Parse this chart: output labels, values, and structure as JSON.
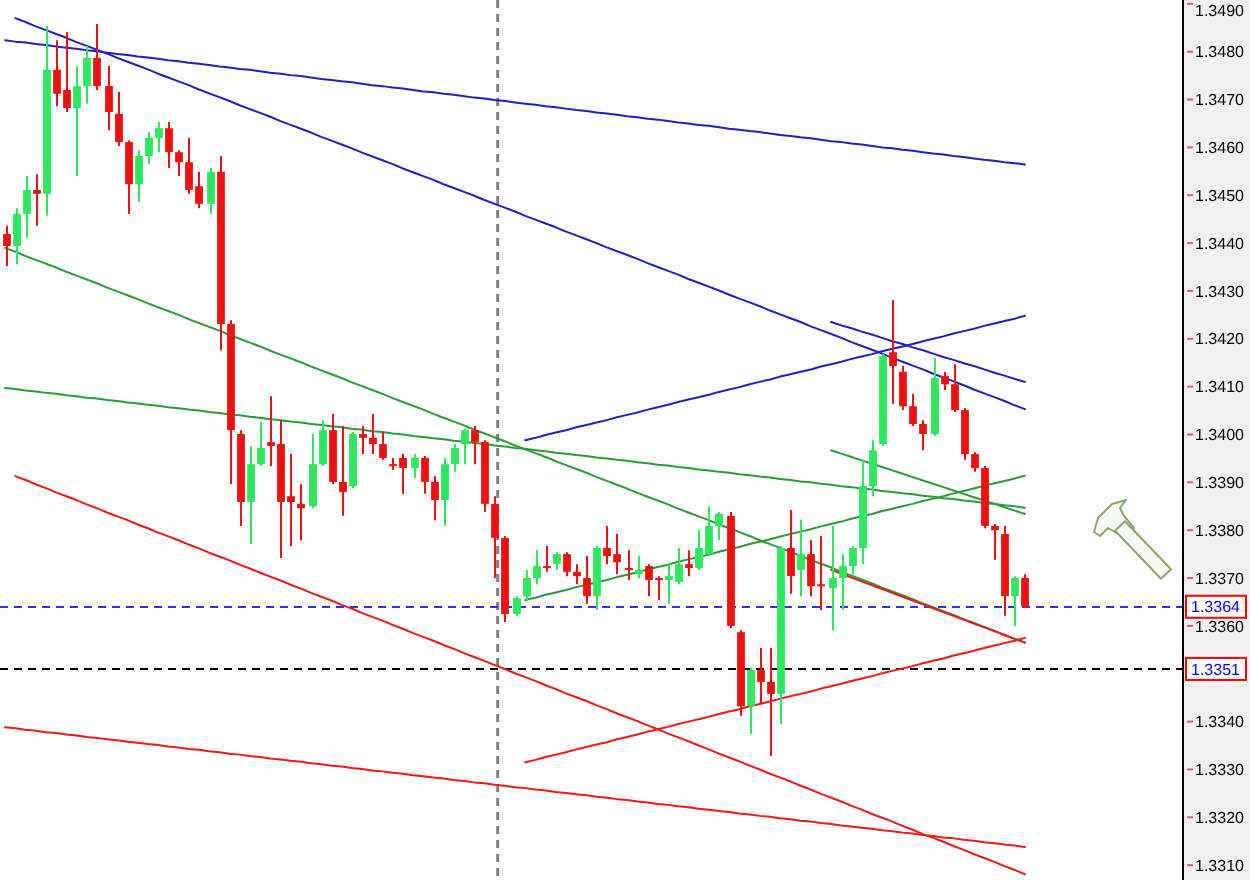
{
  "chart_data": {
    "type": "candlestick",
    "categories": [
      null,
      null,
      null,
      null,
      null,
      null,
      null,
      null,
      null,
      null,
      null,
      null,
      null,
      null,
      null,
      null,
      null,
      null,
      null,
      null,
      null,
      null,
      null,
      null,
      null,
      null,
      null,
      null,
      null,
      null,
      null,
      null,
      null,
      null,
      null,
      null,
      null,
      null,
      null,
      null,
      null,
      null,
      null,
      null,
      null,
      null,
      null,
      null,
      null,
      null,
      null,
      null,
      null,
      null,
      null,
      null,
      null,
      null,
      null,
      null,
      null,
      null,
      null,
      null,
      null,
      null,
      null,
      null,
      null,
      null,
      null,
      null,
      null,
      null,
      null,
      null,
      null,
      null,
      null,
      null,
      null,
      null,
      null,
      null,
      null,
      null,
      null,
      null,
      null,
      null,
      null,
      null,
      null,
      null,
      null,
      null,
      null,
      null,
      null,
      null,
      null,
      null,
      null,
      null,
      null,
      null,
      null,
      null,
      null,
      null,
      null,
      null,
      null,
      null,
      null,
      null
    ],
    "ohlc": [
      [
        1.34419,
        1.34436,
        1.34352,
        1.34394
      ],
      [
        1.34394,
        1.34473,
        1.34356,
        1.34461
      ],
      [
        1.34461,
        1.3454,
        1.34411,
        1.34511
      ],
      [
        1.34511,
        1.34544,
        1.34436,
        1.34503
      ],
      [
        1.34503,
        1.34854,
        1.34457,
        1.34762
      ],
      [
        1.34762,
        1.34824,
        1.34686,
        1.34712
      ],
      [
        1.3472,
        1.34841,
        1.34674,
        1.34682
      ],
      [
        1.34682,
        1.3477,
        1.3454,
        1.34728
      ],
      [
        1.34728,
        1.34812,
        1.34691,
        1.34787
      ],
      [
        1.34787,
        1.34858,
        1.3472,
        1.34728
      ],
      [
        1.34728,
        1.3477,
        1.34636,
        1.34674
      ],
      [
        1.3467,
        1.34716,
        1.34603,
        1.34611
      ],
      [
        1.34611,
        1.34615,
        1.34461,
        1.34523
      ],
      [
        1.34523,
        1.34594,
        1.34486,
        1.34582
      ],
      [
        1.34582,
        1.34632,
        1.34565,
        1.3462
      ],
      [
        1.3462,
        1.34653,
        1.3459,
        1.3464
      ],
      [
        1.3464,
        1.34653,
        1.34557,
        1.3459
      ],
      [
        1.3459,
        1.34594,
        1.3454,
        1.34569
      ],
      [
        1.34569,
        1.3462,
        1.34503,
        1.34511
      ],
      [
        1.34519,
        1.34549,
        1.34473,
        1.34482
      ],
      [
        1.34482,
        1.34557,
        1.34461,
        1.34549
      ],
      [
        1.34549,
        1.34582,
        1.34176,
        1.34231
      ],
      [
        1.34231,
        1.34239,
        1.33896,
        1.34009
      ],
      [
        1.34001,
        1.34009,
        1.33809,
        1.33859
      ],
      [
        1.33859,
        1.33976,
        1.33771,
        1.33938
      ],
      [
        1.33938,
        1.34026,
        1.33934,
        1.33972
      ],
      [
        1.33984,
        1.3408,
        1.33934,
        1.33976
      ],
      [
        1.3398,
        1.3403,
        1.33742,
        1.33859
      ],
      [
        1.33871,
        1.33959,
        1.33767,
        1.33859
      ],
      [
        1.33855,
        1.33896,
        1.33779,
        1.33846
      ],
      [
        1.3385,
        1.34001,
        1.33846,
        1.33938
      ],
      [
        1.33938,
        1.3403,
        1.33934,
        1.34009
      ],
      [
        1.34009,
        1.34043,
        1.33896,
        1.33901
      ],
      [
        1.33901,
        1.34018,
        1.3383,
        1.3388
      ],
      [
        1.33892,
        1.34005,
        1.33888,
        1.34001
      ],
      [
        1.34001,
        1.34018,
        1.33959,
        1.33993
      ],
      [
        1.33993,
        1.34043,
        1.33959,
        1.3398
      ],
      [
        1.3398,
        1.34005,
        1.33947,
        1.33951
      ],
      [
        1.33938,
        1.33951,
        1.33926,
        1.33934
      ],
      [
        1.33951,
        1.33959,
        1.33876,
        1.3393
      ],
      [
        1.3393,
        1.33959,
        1.33909,
        1.33951
      ],
      [
        1.33951,
        1.33955,
        1.33876,
        1.33901
      ],
      [
        1.33901,
        1.33913,
        1.33821,
        1.33863
      ],
      [
        1.33863,
        1.33951,
        1.33809,
        1.33938
      ],
      [
        1.33938,
        1.3398,
        1.33922,
        1.33972
      ],
      [
        1.3398,
        1.34013,
        1.33938,
        1.34009
      ],
      [
        1.34009,
        1.34018,
        1.33938,
        1.33984
      ],
      [
        1.33984,
        1.33988,
        1.33838,
        1.33855
      ],
      [
        1.33855,
        1.33871,
        1.337,
        1.33784
      ],
      [
        1.33784,
        1.33788,
        1.33608,
        1.33625
      ],
      [
        1.33625,
        1.33662,
        1.33621,
        1.33658
      ],
      [
        1.33662,
        1.33717,
        1.33654,
        1.337
      ],
      [
        1.337,
        1.33758,
        1.33687,
        1.33725
      ],
      [
        1.33725,
        1.33767,
        1.33713,
        1.33721
      ],
      [
        1.33729,
        1.33754,
        1.33717,
        1.3375
      ],
      [
        1.3375,
        1.33754,
        1.33704,
        1.33713
      ],
      [
        1.33713,
        1.33729,
        1.33687,
        1.33704
      ],
      [
        1.337,
        1.33746,
        1.33646,
        1.33662
      ],
      [
        1.33662,
        1.33767,
        1.33633,
        1.33763
      ],
      [
        1.33763,
        1.33809,
        1.33729,
        1.33746
      ],
      [
        1.3375,
        1.33792,
        1.33708,
        1.33733
      ],
      [
        1.33721,
        1.33758,
        1.33696,
        1.33717
      ],
      [
        1.33708,
        1.33746,
        1.337,
        1.33717
      ],
      [
        1.33725,
        1.33729,
        1.33662,
        1.33696
      ],
      [
        1.337,
        1.33704,
        1.33654,
        1.33696
      ],
      [
        1.33696,
        1.33729,
        1.33646,
        1.33704
      ],
      [
        1.33692,
        1.33763,
        1.33687,
        1.33729
      ],
      [
        1.33729,
        1.33758,
        1.33704,
        1.33721
      ],
      [
        1.33721,
        1.338,
        1.33717,
        1.33763
      ],
      [
        1.3375,
        1.3385,
        1.33746,
        1.33809
      ],
      [
        1.33809,
        1.33838,
        1.33779,
        1.33834
      ],
      [
        1.3383,
        1.33838,
        1.33595,
        1.336
      ],
      [
        1.33587,
        1.33591,
        1.33412,
        1.33432
      ],
      [
        1.33432,
        1.33512,
        1.33374,
        1.33508
      ],
      [
        1.33508,
        1.33554,
        1.33437,
        1.33483
      ],
      [
        1.33483,
        1.33554,
        1.33328,
        1.33458
      ],
      [
        1.33458,
        1.33767,
        1.33395,
        1.33763
      ],
      [
        1.33763,
        1.33842,
        1.33667,
        1.33704
      ],
      [
        1.33717,
        1.33822,
        1.33662,
        1.3375
      ],
      [
        1.3375,
        1.33779,
        1.33662,
        1.33683
      ],
      [
        1.33687,
        1.33788,
        1.33633,
        1.33683
      ],
      [
        1.33679,
        1.33809,
        1.33591,
        1.337
      ],
      [
        1.337,
        1.3375,
        1.33633,
        1.33725
      ],
      [
        1.33725,
        1.33767,
        1.33708,
        1.33763
      ],
      [
        1.33763,
        1.33947,
        1.33729,
        1.33892
      ],
      [
        1.33892,
        1.33988,
        1.33871,
        1.33967
      ],
      [
        1.3398,
        1.34168,
        1.33976,
        1.34164
      ],
      [
        1.34172,
        1.34281,
        1.34064,
        1.34143
      ],
      [
        1.34131,
        1.34143,
        1.34051,
        1.34059
      ],
      [
        1.34059,
        1.34085,
        1.34018,
        1.34022
      ],
      [
        1.34022,
        1.3403,
        1.33967,
        1.34001
      ],
      [
        1.34001,
        1.3416,
        1.33997,
        1.34118
      ],
      [
        1.34122,
        1.34131,
        1.34093,
        1.34105
      ],
      [
        1.34105,
        1.34147,
        1.34047,
        1.34051
      ],
      [
        1.34051,
        1.34055,
        1.33947,
        1.33959
      ],
      [
        1.33959,
        1.33963,
        1.33922,
        1.3393
      ],
      [
        1.3393,
        1.33934,
        1.33804,
        1.33809
      ],
      [
        1.33809,
        1.33813,
        1.33738,
        1.338
      ],
      [
        1.33792,
        1.33809,
        1.33621,
        1.33662
      ],
      [
        1.33662,
        1.33704,
        1.336,
        1.337
      ],
      [
        1.337,
        1.33708,
        1.33637,
        1.33641
      ],
      null,
      null,
      null,
      null,
      null,
      null,
      null,
      null,
      null,
      null,
      null,
      null,
      null,
      null,
      null
    ],
    "colors": [
      "#ee1111",
      "#2ee860",
      "#2ee860",
      "#ee1111",
      "#2ee860",
      "#ee1111",
      "#ee1111",
      "#2ee860",
      "#2ee860",
      "#ee1111",
      "#ee1111",
      "#ee1111",
      "#ee1111",
      "#2ee860",
      "#2ee860",
      "#2ee860",
      "#ee1111",
      "#ee1111",
      "#ee1111",
      "#ee1111",
      "#2ee860",
      "#ee1111",
      "#ee1111",
      "#ee1111",
      "#2ee860",
      "#2ee860",
      "#ee1111",
      "#ee1111",
      "#ee1111",
      "#ee1111",
      "#2ee860",
      "#2ee860",
      "#ee1111",
      "#ee1111",
      "#2ee860",
      "#ee1111",
      "#ee1111",
      "#ee1111",
      "#ee1111",
      "#ee1111",
      "#2ee860",
      "#ee1111",
      "#ee1111",
      "#2ee860",
      "#2ee860",
      "#2ee860",
      "#ee1111",
      "#ee1111",
      "#ee1111",
      "#ee1111",
      "#2ee860",
      "#2ee860",
      "#2ee860",
      "#ee1111",
      "#2ee860",
      "#ee1111",
      "#ee1111",
      "#ee1111",
      "#2ee860",
      "#ee1111",
      "#ee1111",
      "#ee1111",
      "#2ee860",
      "#ee1111",
      "#ee1111",
      "#2ee860",
      "#2ee860",
      "#ee1111",
      "#2ee860",
      "#2ee860",
      "#2ee860",
      "#ee1111",
      "#ee1111",
      "#2ee860",
      "#ee1111",
      "#ee1111",
      "#2ee860",
      "#ee1111",
      "#2ee860",
      "#ee1111",
      "#ee1111",
      "#2ee860",
      "#2ee860",
      "#2ee860",
      "#2ee860",
      "#2ee860",
      "#2ee860",
      "#ee1111",
      "#ee1111",
      "#ee1111",
      "#ee1111",
      "#2ee860",
      "#ee1111",
      "#ee1111",
      "#ee1111",
      "#ee1111",
      "#ee1111",
      "#ee1111",
      "#ee1111",
      "#2ee860",
      "#ee1111",
      null,
      null,
      null,
      null,
      null,
      null,
      null,
      null,
      null,
      null,
      null,
      null,
      null,
      null,
      null
    ],
    "series": [
      {
        "type": "line",
        "color": "#2020c8",
        "values": [
          1.34824,
          1.34821,
          1.34819,
          1.34816,
          1.34814,
          1.34811,
          1.34808,
          1.34806,
          1.34803,
          1.34801,
          1.34798,
          1.34795,
          1.34793,
          1.3479,
          1.34788,
          1.34785,
          1.34782,
          1.3478,
          1.34777,
          1.34775,
          1.34772,
          1.34769,
          1.34767,
          1.34764,
          1.34762,
          1.34759,
          1.34756,
          1.34754,
          1.34751,
          1.34749,
          1.34746,
          1.34743,
          1.34741,
          1.34738,
          1.34736,
          1.34733,
          1.3473,
          1.34728,
          1.34725,
          1.34723,
          1.3472,
          1.34717,
          1.34715,
          1.34712,
          1.3471,
          1.34707,
          1.34704,
          1.34702,
          1.34699,
          1.34697,
          1.34694,
          1.34691,
          1.34689,
          1.34686,
          1.34684,
          1.34681,
          1.34678,
          1.34676,
          1.34673,
          1.34671,
          1.34668,
          1.34665,
          1.34663,
          1.3466,
          1.34658,
          1.34655,
          1.34652,
          1.3465,
          1.34647,
          1.34645,
          1.34642,
          1.34639,
          1.34637,
          1.34634,
          1.34632,
          1.34629,
          1.34626,
          1.34624,
          1.34621,
          1.34619,
          1.34616,
          1.34613,
          1.34611,
          1.34608,
          1.34606,
          1.34603,
          1.346,
          1.34598,
          1.34595,
          1.34593,
          1.3459,
          1.34587,
          1.34585,
          1.34582,
          1.3458,
          1.34577,
          1.34574,
          1.34572,
          1.34569,
          1.34567,
          1.34564,
          null,
          null,
          null,
          null,
          null,
          null,
          null,
          null,
          null,
          null,
          null,
          null,
          null,
          null,
          null
        ]
      },
      {
        "type": "line",
        "color": "#2020c8",
        "values": [
          null,
          1.3487,
          1.34862,
          1.34853,
          1.34845,
          1.34837,
          1.34829,
          1.3482,
          1.34812,
          1.34804,
          1.34796,
          1.34787,
          1.34779,
          1.34771,
          1.34763,
          1.34754,
          1.34746,
          1.34738,
          1.3473,
          1.34721,
          1.34713,
          1.34705,
          1.34697,
          1.34688,
          1.3468,
          1.34672,
          1.34664,
          1.34655,
          1.34647,
          1.34639,
          1.34631,
          1.34622,
          1.34614,
          1.34606,
          1.34598,
          1.34589,
          1.34581,
          1.34573,
          1.34565,
          1.34556,
          1.34548,
          1.3454,
          1.34532,
          1.34523,
          1.34515,
          1.34507,
          1.34499,
          1.3449,
          1.34482,
          1.34474,
          1.34466,
          1.34457,
          1.34449,
          1.34441,
          1.34433,
          1.34424,
          1.34416,
          1.34408,
          1.344,
          1.34391,
          1.34383,
          1.34375,
          1.34367,
          1.34358,
          1.3435,
          1.34342,
          1.34334,
          1.34325,
          1.34317,
          1.34309,
          1.34301,
          1.34292,
          1.34284,
          1.34276,
          1.34268,
          1.34259,
          1.34251,
          1.34243,
          1.34235,
          1.34226,
          1.34218,
          1.3421,
          1.34202,
          1.34193,
          1.34185,
          1.34177,
          1.34169,
          1.3416,
          1.34152,
          1.34144,
          1.34136,
          1.34127,
          1.34119,
          1.34111,
          1.34103,
          1.34094,
          1.34086,
          1.34078,
          1.3407,
          1.34061,
          1.34053,
          null,
          null,
          null,
          null,
          null,
          null,
          null,
          null,
          null,
          null,
          null,
          null,
          null,
          null,
          null
        ]
      },
      {
        "type": "line",
        "color": "#2020c8",
        "values": [
          null,
          null,
          null,
          null,
          null,
          null,
          null,
          null,
          null,
          null,
          null,
          null,
          null,
          null,
          null,
          null,
          null,
          null,
          null,
          null,
          null,
          null,
          null,
          null,
          null,
          null,
          null,
          null,
          null,
          null,
          null,
          null,
          null,
          null,
          null,
          null,
          null,
          null,
          null,
          null,
          null,
          null,
          null,
          null,
          null,
          null,
          null,
          null,
          null,
          null,
          null,
          1.33988,
          1.33993,
          1.33999,
          1.34004,
          1.34009,
          1.34015,
          1.3402,
          1.34025,
          1.3403,
          1.34036,
          1.34041,
          1.34046,
          1.34052,
          1.34057,
          1.34062,
          1.34068,
          1.34073,
          1.34078,
          1.34083,
          1.34089,
          1.34094,
          1.34099,
          1.34105,
          1.3411,
          1.34115,
          1.34121,
          1.34126,
          1.34131,
          1.34136,
          1.34142,
          1.34147,
          1.34152,
          1.34158,
          1.34163,
          1.34168,
          1.34174,
          1.34179,
          1.34184,
          1.34189,
          1.34195,
          1.342,
          1.34205,
          1.34211,
          1.34216,
          1.34221,
          1.34227,
          1.34232,
          1.34237,
          1.34242,
          1.34248,
          null,
          null,
          null,
          null,
          null,
          null,
          null,
          null,
          null,
          null,
          null,
          null,
          null,
          null,
          null
        ]
      },
      {
        "type": "line",
        "color": "#2020c8",
        "values": [
          null,
          null,
          null,
          null,
          null,
          null,
          null,
          null,
          null,
          null,
          null,
          null,
          null,
          null,
          null,
          null,
          null,
          null,
          null,
          null,
          null,
          null,
          null,
          null,
          null,
          null,
          null,
          null,
          null,
          null,
          null,
          null,
          null,
          null,
          null,
          null,
          null,
          null,
          null,
          null,
          null,
          null,
          null,
          null,
          null,
          null,
          null,
          null,
          null,
          null,
          null,
          null,
          null,
          null,
          null,
          null,
          null,
          null,
          null,
          null,
          null,
          null,
          null,
          null,
          null,
          null,
          null,
          null,
          null,
          null,
          null,
          null,
          null,
          null,
          null,
          null,
          null,
          null,
          null,
          null,
          null,
          1.34235,
          1.34228,
          1.34222,
          1.34215,
          1.34209,
          1.34202,
          1.34195,
          1.34189,
          1.34182,
          1.34176,
          1.34169,
          1.34162,
          1.34156,
          1.34149,
          1.34143,
          1.34136,
          1.34129,
          1.34123,
          1.34116,
          1.3411,
          null,
          null,
          null,
          null,
          null,
          null,
          null,
          null,
          null,
          null,
          null,
          null,
          null,
          null,
          null
        ]
      },
      {
        "type": "line",
        "color": "#2a9d3a",
        "values": [
          1.3439,
          1.34382,
          1.34373,
          1.34365,
          1.34357,
          1.34349,
          1.3434,
          1.34332,
          1.34324,
          1.34316,
          1.34307,
          1.34299,
          1.34291,
          1.34283,
          1.34274,
          1.34266,
          1.34258,
          1.3425,
          1.34241,
          1.34233,
          1.34225,
          1.34217,
          1.34208,
          1.342,
          1.34192,
          1.34184,
          1.34175,
          1.34167,
          1.34159,
          1.34151,
          1.34142,
          1.34134,
          1.34126,
          1.34118,
          1.34109,
          1.34101,
          1.34093,
          1.34085,
          1.34076,
          1.34068,
          1.3406,
          1.34052,
          1.34043,
          1.34035,
          1.34027,
          1.34019,
          1.3401,
          1.34002,
          1.33994,
          1.33986,
          1.33977,
          1.33969,
          1.33961,
          1.33953,
          1.33944,
          1.33936,
          1.33928,
          1.3392,
          1.33911,
          1.33903,
          1.33895,
          1.33887,
          1.33878,
          1.3387,
          1.33862,
          1.33854,
          1.33845,
          1.33837,
          1.33829,
          1.33821,
          1.33812,
          1.33804,
          1.33796,
          1.33788,
          1.33779,
          1.33771,
          1.33763,
          1.33755,
          1.33746,
          1.33738,
          1.3373,
          1.33722,
          1.33713,
          1.33705,
          1.33697,
          1.33689,
          1.3368,
          1.33672,
          1.33664,
          1.33656,
          1.33647,
          1.33639,
          1.33631,
          1.33623,
          1.33614,
          1.33606,
          1.33598,
          1.3359,
          1.33581,
          1.33573,
          1.33565,
          null,
          null,
          null,
          null,
          null,
          null,
          null,
          null,
          null,
          null,
          null,
          null,
          null,
          null,
          null
        ]
      },
      {
        "type": "line",
        "color": "#2a9d3a",
        "values": [
          1.34097,
          1.34095,
          1.34092,
          1.3409,
          1.34087,
          1.34085,
          1.34082,
          1.3408,
          1.34077,
          1.34075,
          1.34072,
          1.3407,
          1.34067,
          1.34065,
          1.34062,
          1.3406,
          1.34057,
          1.34055,
          1.34052,
          1.3405,
          1.34047,
          1.34045,
          1.34042,
          1.3404,
          1.34037,
          1.34035,
          1.34032,
          1.3403,
          1.34027,
          1.34025,
          1.34022,
          1.3402,
          1.34017,
          1.34015,
          1.34012,
          1.3401,
          1.34007,
          1.34005,
          1.34002,
          1.34,
          1.33997,
          1.33995,
          1.33992,
          1.3399,
          1.33987,
          1.33985,
          1.33982,
          1.3398,
          1.33977,
          1.33975,
          1.33972,
          1.3397,
          1.33967,
          1.33965,
          1.33962,
          1.3396,
          1.33957,
          1.33955,
          1.33952,
          1.3395,
          1.33947,
          1.33945,
          1.33942,
          1.3394,
          1.33937,
          1.33935,
          1.33932,
          1.3393,
          1.33927,
          1.33925,
          1.33922,
          1.3392,
          1.33917,
          1.33915,
          1.33912,
          1.3391,
          1.33907,
          1.33905,
          1.33902,
          1.339,
          1.33897,
          1.33895,
          1.33892,
          1.3389,
          1.33887,
          1.33885,
          1.33882,
          1.3388,
          1.33877,
          1.33875,
          1.33872,
          1.3387,
          1.33867,
          1.33865,
          1.33862,
          1.3386,
          1.33857,
          1.33855,
          1.33852,
          1.3385,
          1.33847,
          null,
          null,
          null,
          null,
          null,
          null,
          null,
          null,
          null,
          null,
          null,
          null,
          null,
          null,
          null
        ]
      },
      {
        "type": "line",
        "color": "#2a9d3a",
        "values": [
          null,
          null,
          null,
          null,
          null,
          null,
          null,
          null,
          null,
          null,
          null,
          null,
          null,
          null,
          null,
          null,
          null,
          null,
          null,
          null,
          null,
          null,
          null,
          null,
          null,
          null,
          null,
          null,
          null,
          null,
          null,
          null,
          null,
          null,
          null,
          null,
          null,
          null,
          null,
          null,
          null,
          null,
          null,
          null,
          null,
          null,
          null,
          null,
          null,
          null,
          null,
          null,
          null,
          null,
          null,
          null,
          null,
          null,
          null,
          null,
          null,
          null,
          null,
          null,
          null,
          null,
          null,
          null,
          null,
          null,
          null,
          null,
          null,
          null,
          null,
          null,
          null,
          null,
          null,
          null,
          null,
          1.33967,
          1.3396,
          1.33953,
          1.33946,
          1.33939,
          1.33932,
          1.33925,
          1.33918,
          1.33911,
          1.33904,
          1.33897,
          1.3389,
          1.33883,
          1.33876,
          1.33869,
          1.33862,
          1.33855,
          1.33848,
          1.33841,
          1.33834,
          null,
          null,
          null,
          null,
          null,
          null,
          null,
          null,
          null,
          null,
          null,
          null,
          null,
          null,
          null
        ]
      },
      {
        "type": "line",
        "color": "#2a9d3a",
        "values": [
          null,
          null,
          null,
          null,
          null,
          null,
          null,
          null,
          null,
          null,
          null,
          null,
          null,
          null,
          null,
          null,
          null,
          null,
          null,
          null,
          null,
          null,
          null,
          null,
          null,
          null,
          null,
          null,
          null,
          null,
          null,
          null,
          null,
          null,
          null,
          null,
          null,
          null,
          null,
          null,
          null,
          null,
          null,
          null,
          null,
          null,
          null,
          null,
          null,
          null,
          null,
          1.33654,
          1.33659,
          1.33665,
          1.3367,
          1.33675,
          1.33681,
          1.33686,
          1.33691,
          1.33696,
          1.33702,
          1.33707,
          1.33712,
          1.33718,
          1.33723,
          1.33728,
          1.33734,
          1.33739,
          1.33744,
          1.33749,
          1.33755,
          1.3376,
          1.33765,
          1.33771,
          1.33776,
          1.33781,
          1.33787,
          1.33792,
          1.33797,
          1.33802,
          1.33808,
          1.33813,
          1.33818,
          1.33824,
          1.33829,
          1.33834,
          1.3384,
          1.33845,
          1.3385,
          1.33855,
          1.33861,
          1.33866,
          1.33871,
          1.33877,
          1.33882,
          1.33887,
          1.33893,
          1.33898,
          1.33903,
          1.33908,
          1.33914,
          null,
          null,
          null,
          null,
          null,
          null,
          null,
          null,
          null,
          null,
          null,
          null,
          null,
          null,
          null
        ]
      },
      {
        "type": "line",
        "color": "#f01818",
        "values": [
          null,
          1.33913,
          1.33905,
          1.33896,
          1.33888,
          1.33879,
          1.33871,
          1.33863,
          1.33854,
          1.33846,
          1.33837,
          1.33829,
          1.33821,
          1.33812,
          1.33804,
          1.33795,
          1.33787,
          1.33779,
          1.3377,
          1.33762,
          1.33753,
          1.33745,
          1.33737,
          1.33728,
          1.3372,
          1.33711,
          1.33703,
          1.33695,
          1.33686,
          1.33678,
          1.33669,
          1.33661,
          1.33653,
          1.33644,
          1.33636,
          1.33627,
          1.33619,
          1.33611,
          1.33602,
          1.33594,
          1.33585,
          1.33577,
          1.33569,
          1.3356,
          1.33552,
          1.33543,
          1.33535,
          1.33527,
          1.33518,
          1.3351,
          1.33501,
          1.33493,
          1.33485,
          1.33476,
          1.33468,
          1.33459,
          1.33451,
          1.33443,
          1.33434,
          1.33426,
          1.33417,
          1.33409,
          1.33401,
          1.33392,
          1.33384,
          1.33375,
          1.33367,
          1.33359,
          1.3335,
          1.33342,
          1.33333,
          1.33325,
          1.33317,
          1.33308,
          1.333,
          1.33291,
          1.33283,
          1.33275,
          1.33266,
          1.33258,
          1.33249,
          1.33241,
          1.33233,
          1.33224,
          1.33216,
          1.33207,
          1.33199,
          1.33191,
          1.33182,
          1.33174,
          1.33165,
          1.33157,
          1.33149,
          1.3314,
          1.33132,
          1.33123,
          1.33115,
          1.33107,
          1.33098,
          1.3309,
          1.33081,
          null,
          null,
          null,
          null,
          null,
          null,
          null,
          null,
          null,
          null,
          null,
          null,
          null,
          null,
          null
        ]
      },
      {
        "type": "line",
        "color": "#f01818",
        "values": [
          1.33388,
          1.33386,
          1.33383,
          1.33381,
          1.33378,
          1.33376,
          1.33373,
          1.33371,
          1.33368,
          1.33366,
          1.33363,
          1.33361,
          1.33358,
          1.33356,
          1.33353,
          1.33351,
          1.33348,
          1.33346,
          1.33343,
          1.33341,
          1.33338,
          1.33336,
          1.33333,
          1.33331,
          1.33328,
          1.33326,
          1.33323,
          1.33321,
          1.33318,
          1.33316,
          1.33313,
          1.33311,
          1.33308,
          1.33306,
          1.33303,
          1.33301,
          1.33298,
          1.33296,
          1.33293,
          1.33291,
          1.33288,
          1.33286,
          1.33283,
          1.33281,
          1.33278,
          1.33276,
          1.33273,
          1.33271,
          1.33268,
          1.33266,
          1.33263,
          1.33261,
          1.33258,
          1.33256,
          1.33253,
          1.33251,
          1.33248,
          1.33246,
          1.33243,
          1.33241,
          1.33238,
          1.33236,
          1.33233,
          1.33231,
          1.33228,
          1.33226,
          1.33223,
          1.33221,
          1.33218,
          1.33216,
          1.33213,
          1.33211,
          1.33208,
          1.33206,
          1.33203,
          1.33201,
          1.33198,
          1.33196,
          1.33193,
          1.33191,
          1.33188,
          1.33186,
          1.33183,
          1.33181,
          1.33178,
          1.33176,
          1.33173,
          1.33171,
          1.33168,
          1.33166,
          1.33163,
          1.33161,
          1.33158,
          1.33156,
          1.33153,
          1.33151,
          1.33148,
          1.33146,
          1.33143,
          1.33141,
          1.33138,
          null,
          null,
          null,
          null,
          null,
          null,
          null,
          null,
          null,
          null,
          null,
          null,
          null,
          null,
          null
        ]
      },
      {
        "type": "line",
        "color": "#f01818",
        "values": [
          null,
          null,
          null,
          null,
          null,
          null,
          null,
          null,
          null,
          null,
          null,
          null,
          null,
          null,
          null,
          null,
          null,
          null,
          null,
          null,
          null,
          null,
          null,
          null,
          null,
          null,
          null,
          null,
          null,
          null,
          null,
          null,
          null,
          null,
          null,
          null,
          null,
          null,
          null,
          null,
          null,
          null,
          null,
          null,
          null,
          null,
          null,
          null,
          null,
          null,
          null,
          1.33315,
          1.3332,
          1.33326,
          1.33331,
          1.33336,
          1.33342,
          1.33347,
          1.33352,
          1.33357,
          1.33363,
          1.33368,
          1.33373,
          1.33379,
          1.33384,
          1.33389,
          1.33395,
          1.334,
          1.33405,
          1.3341,
          1.33416,
          1.33421,
          1.33426,
          1.33432,
          1.33437,
          1.33442,
          1.33448,
          1.33453,
          1.33458,
          1.33463,
          1.33469,
          1.33474,
          1.33479,
          1.33485,
          1.3349,
          1.33495,
          1.33501,
          1.33506,
          1.33511,
          1.33516,
          1.33522,
          1.33527,
          1.33532,
          1.33538,
          1.33543,
          1.33548,
          1.33554,
          1.33559,
          1.33564,
          1.33569,
          1.33575,
          null,
          null,
          null,
          null,
          null,
          null,
          null,
          null,
          null,
          null,
          null,
          null,
          null,
          null,
          null
        ]
      },
      {
        "type": "line",
        "color": "#f01818",
        "values": [
          null,
          null,
          null,
          null,
          null,
          null,
          null,
          null,
          null,
          null,
          null,
          null,
          null,
          null,
          null,
          null,
          null,
          null,
          null,
          null,
          null,
          null,
          null,
          null,
          null,
          null,
          null,
          null,
          null,
          null,
          null,
          null,
          null,
          null,
          null,
          null,
          null,
          null,
          null,
          null,
          null,
          null,
          null,
          null,
          null,
          null,
          null,
          null,
          null,
          null,
          null,
          null,
          null,
          null,
          null,
          null,
          null,
          null,
          null,
          null,
          null,
          null,
          null,
          null,
          null,
          null,
          null,
          null,
          null,
          null,
          null,
          null,
          null,
          null,
          null,
          null,
          null,
          null,
          null,
          null,
          null,
          1.33717,
          1.33709,
          1.33701,
          1.33693,
          1.33685,
          1.33677,
          1.33669,
          1.33661,
          1.33653,
          1.33645,
          1.33637,
          1.33629,
          1.33621,
          1.33613,
          1.33605,
          1.33597,
          1.33589,
          1.33581,
          1.33573,
          1.33565,
          null,
          null,
          null,
          null,
          null,
          null,
          null,
          null,
          null,
          null,
          null,
          null,
          null,
          null,
          null
        ]
      }
    ],
    "ylim": [
      1.33069,
      1.34908
    ],
    "yticks": [
      {
        "value": 1.331,
        "label": "1.3310"
      },
      {
        "value": 1.332,
        "label": "1.3320"
      },
      {
        "value": 1.333,
        "label": "1.3330"
      },
      {
        "value": 1.334,
        "label": "1.3340"
      },
      {
        "value": 1.336,
        "label": "1.3360"
      },
      {
        "value": 1.337,
        "label": "1.3370"
      },
      {
        "value": 1.338,
        "label": "1.3380"
      },
      {
        "value": 1.339,
        "label": "1.3390"
      },
      {
        "value": 1.34,
        "label": "1.3400"
      },
      {
        "value": 1.341,
        "label": "1.3410"
      },
      {
        "value": 1.342,
        "label": "1.3420"
      },
      {
        "value": 1.343,
        "label": "1.3430"
      },
      {
        "value": 1.344,
        "label": "1.3440"
      },
      {
        "value": 1.345,
        "label": "1.3450"
      },
      {
        "value": 1.346,
        "label": "1.3460"
      },
      {
        "value": 1.347,
        "label": "1.3470"
      },
      {
        "value": 1.348,
        "label": "1.3480"
      },
      {
        "value": 1.349,
        "label": "1.3490"
      }
    ],
    "ref_lines": [
      {
        "axis": "y",
        "value": 1.3364,
        "label": "1.3364",
        "color": "#3030ff",
        "line_style": "dashed"
      },
      {
        "axis": "y",
        "value": 1.3351,
        "label": "1.3351",
        "color": "#000000",
        "line_style": "dashed"
      }
    ],
    "tick_labels": "y"
  }
}
